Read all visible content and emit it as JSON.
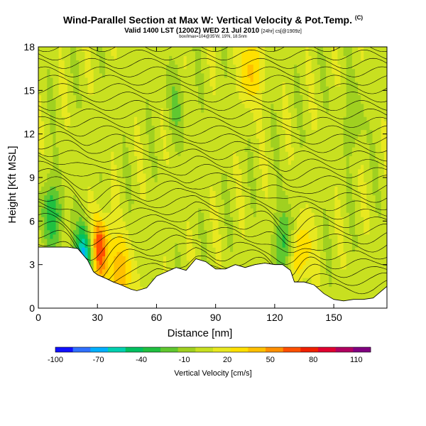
{
  "header": {
    "title": "Wind-Parallel Section at Max W: Vertical Velocity & Pot.Temp.",
    "title_mark": "(C)",
    "subtitle": "Valid 1400 LST (1200Z) WED 21 Jul 2010",
    "subtitle_note": "[24hr] cs[@1909z]",
    "footnote": "box/lmax=104@35'W, 19'N, 18.5nm"
  },
  "chart_data": {
    "type": "heatmap",
    "xlabel": "Distance [nm]",
    "ylabel": "Height [Kft MSL]",
    "xlim": [
      0,
      177
    ],
    "ylim": [
      0,
      18
    ],
    "xticks": [
      0,
      30,
      60,
      90,
      120,
      150
    ],
    "yticks": [
      0,
      3,
      6,
      9,
      12,
      15,
      18
    ],
    "terrain_kft": [
      [
        0,
        4.2
      ],
      [
        15,
        4.2
      ],
      [
        20,
        4.1
      ],
      [
        25,
        3.3
      ],
      [
        28,
        2.5
      ],
      [
        30,
        2.3
      ],
      [
        35,
        2.0
      ],
      [
        38,
        1.8
      ],
      [
        42,
        1.6
      ],
      [
        47,
        1.3
      ],
      [
        50,
        1.2
      ],
      [
        55,
        1.4
      ],
      [
        60,
        2.2
      ],
      [
        65,
        2.5
      ],
      [
        70,
        2.8
      ],
      [
        75,
        2.6
      ],
      [
        80,
        3.4
      ],
      [
        85,
        3.2
      ],
      [
        90,
        2.7
      ],
      [
        95,
        2.7
      ],
      [
        100,
        3.0
      ],
      [
        105,
        2.8
      ],
      [
        110,
        3.0
      ],
      [
        115,
        3.1
      ],
      [
        120,
        3.0
      ],
      [
        124,
        3.0
      ],
      [
        128,
        2.6
      ],
      [
        130,
        1.8
      ],
      [
        135,
        1.8
      ],
      [
        140,
        1.6
      ],
      [
        145,
        1.0
      ],
      [
        150,
        0.6
      ],
      [
        155,
        0.5
      ],
      [
        160,
        0.6
      ],
      [
        165,
        0.6
      ],
      [
        170,
        0.7
      ],
      [
        177,
        1.5
      ]
    ],
    "features": [
      {
        "x": 30,
        "z": 4.0,
        "w": 95
      },
      {
        "x": 25,
        "z": 3.6,
        "w": -95
      },
      {
        "x": 42,
        "z": 2.5,
        "w": 40
      },
      {
        "x": 132,
        "z": 4.0,
        "w": 45
      },
      {
        "x": 126,
        "z": 4.5,
        "w": -45
      },
      {
        "x": 108,
        "z": 16.5,
        "w": 35
      },
      {
        "x": 7,
        "z": 6.5,
        "w": -40
      },
      {
        "x": 160,
        "z": 13.0,
        "w": -15
      },
      {
        "x": 70,
        "z": 14.0,
        "w": -15
      }
    ],
    "colorbar": {
      "title": "Vertical Velocity [cm/s]",
      "tick_labels": [
        "-100",
        "-70",
        "-40",
        "-10",
        "20",
        "50",
        "80",
        "110"
      ],
      "min": -100,
      "max": 120,
      "colors": [
        "#1010ff",
        "#3070ff",
        "#00b0ff",
        "#00d0b0",
        "#00c060",
        "#20c040",
        "#60c830",
        "#a0d020",
        "#c8e020",
        "#e8e820",
        "#ffe000",
        "#ffc000",
        "#ff9000",
        "#ff5000",
        "#f02000",
        "#e00030",
        "#b00060",
        "#800080"
      ]
    },
    "theta_levels": 30
  }
}
